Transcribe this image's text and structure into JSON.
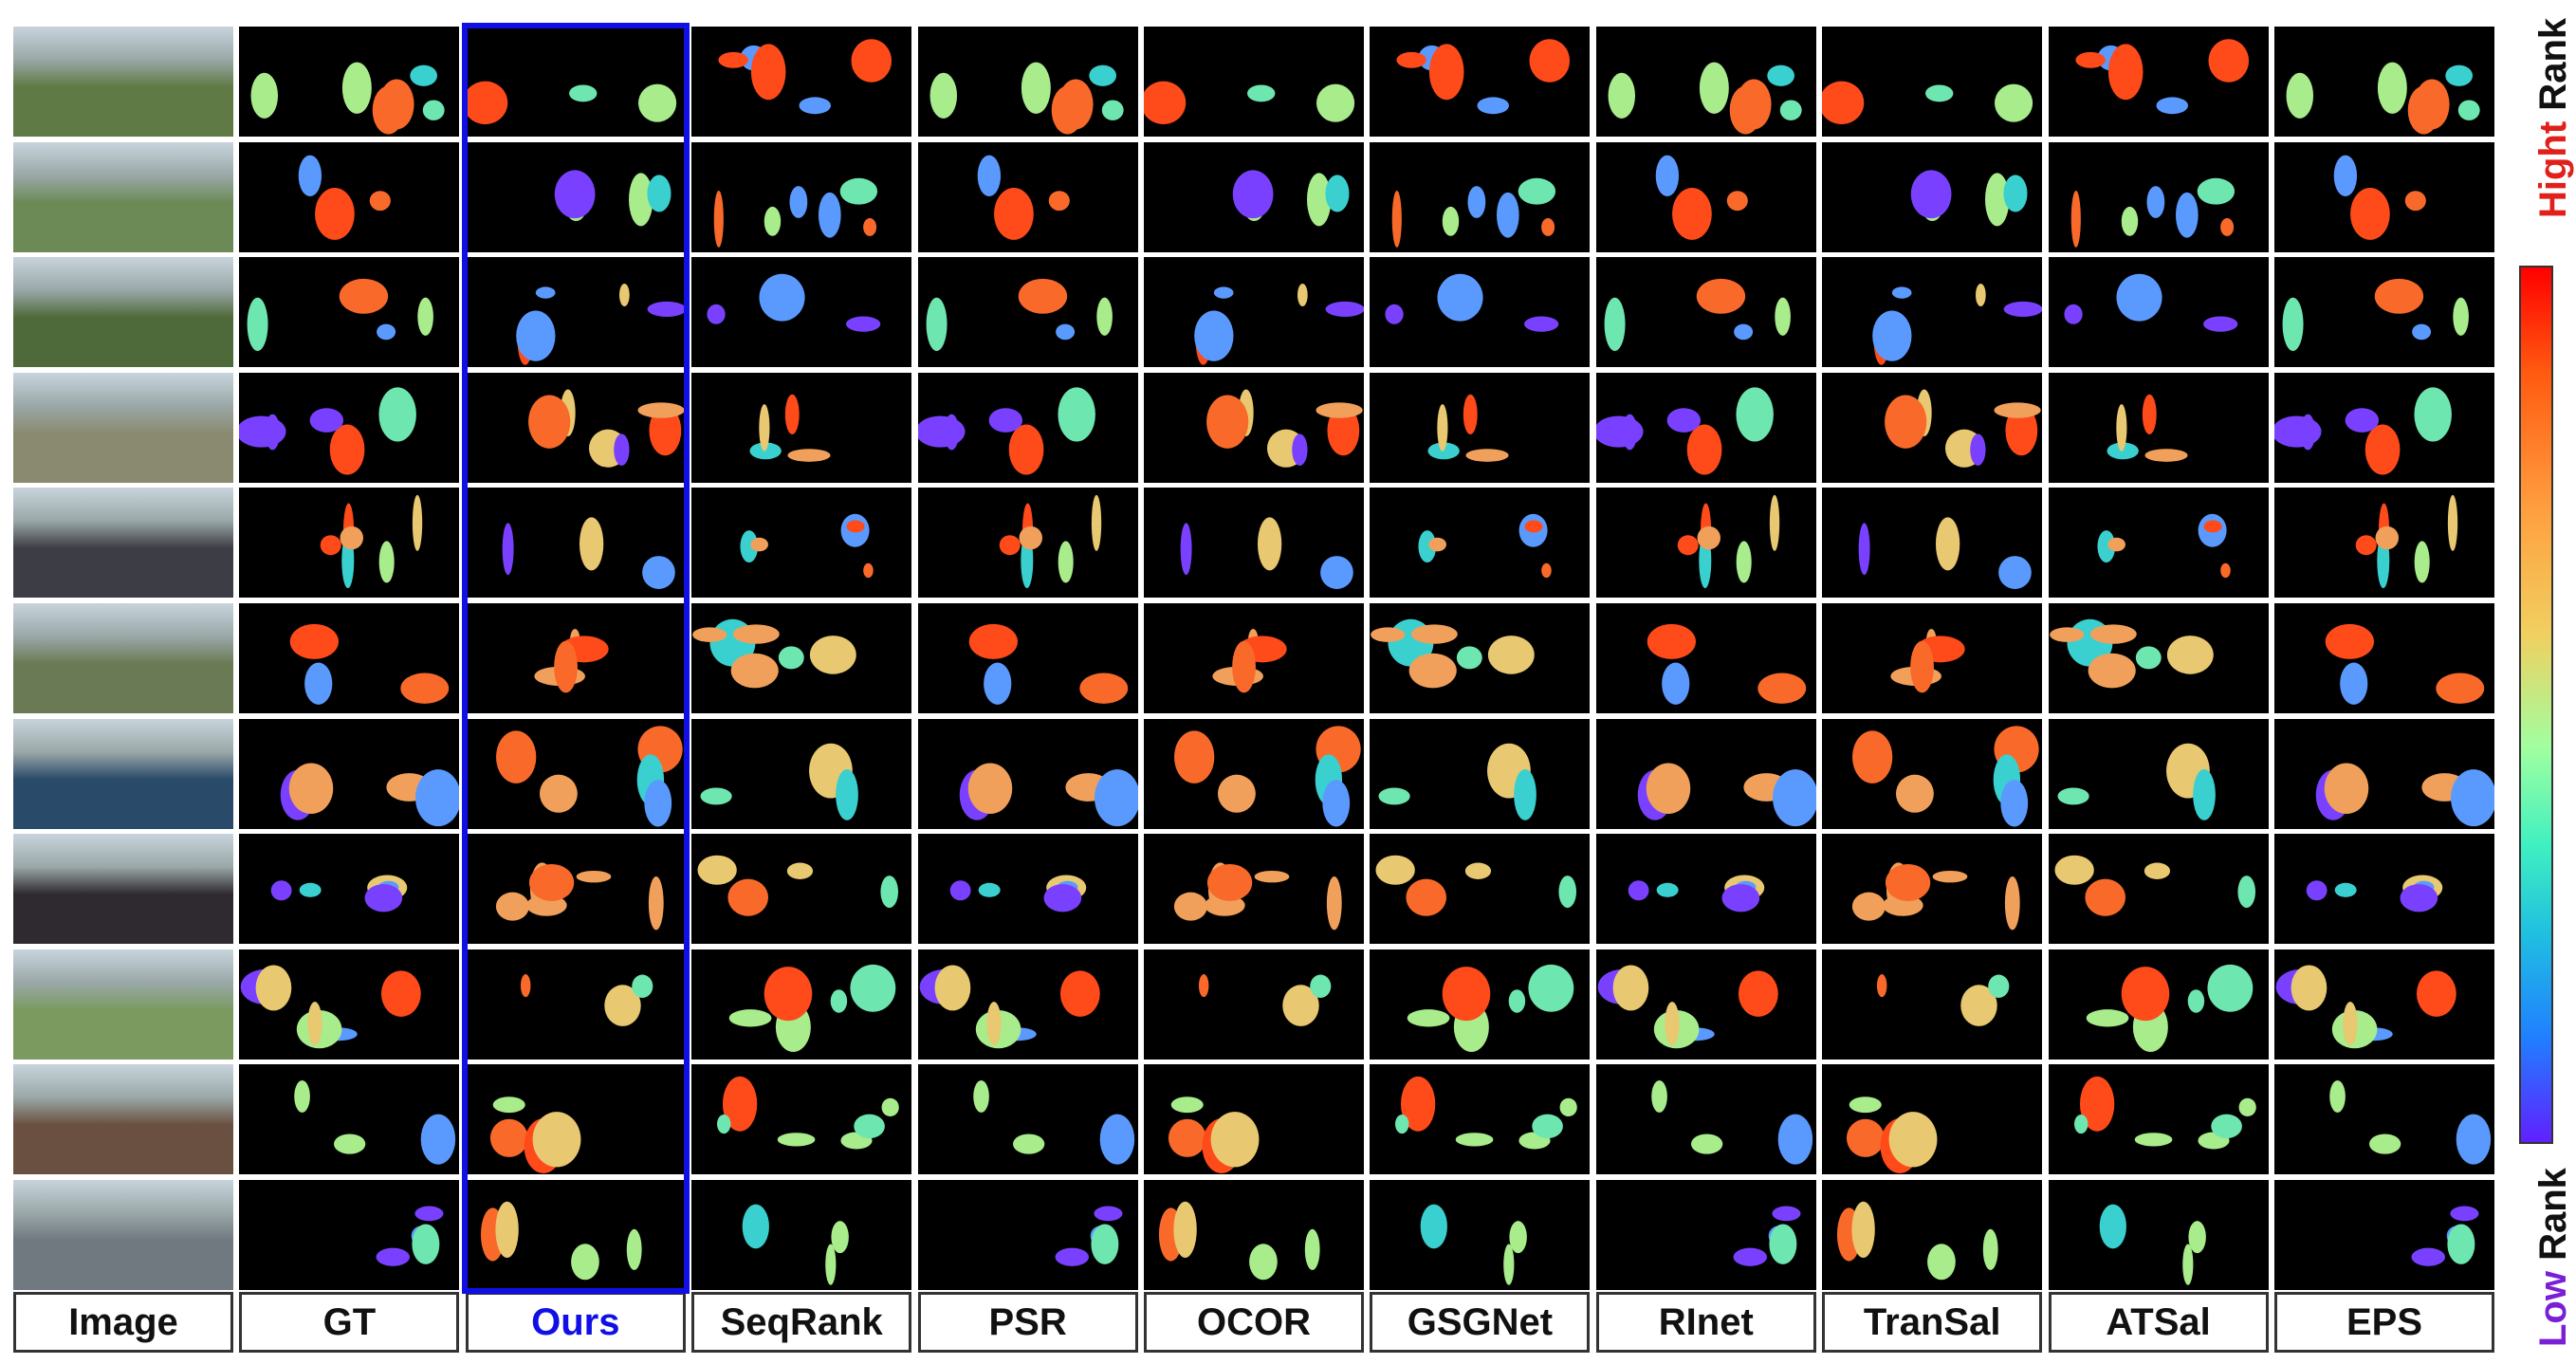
{
  "columns": [
    "Image",
    "GT",
    "Ours",
    "SeqRank",
    "PSR",
    "OCOR",
    "GSGNet",
    "RInet",
    "TranSal",
    "ATSal",
    "EPS"
  ],
  "highlight_column": "Ours",
  "highlight_color": "#1010e6",
  "rows": 11,
  "rank_scale": {
    "high_word": "Hight",
    "high_color": "#e0201a",
    "low_word": "Low",
    "low_color": "#7a1fd6",
    "rank_word": "Rank",
    "gradient": [
      "#ff0000",
      "#ff5a10",
      "#ffa040",
      "#f0d060",
      "#a0ffa0",
      "#40f0c0",
      "#20c0e0",
      "#2080ff",
      "#6020ff"
    ]
  }
}
